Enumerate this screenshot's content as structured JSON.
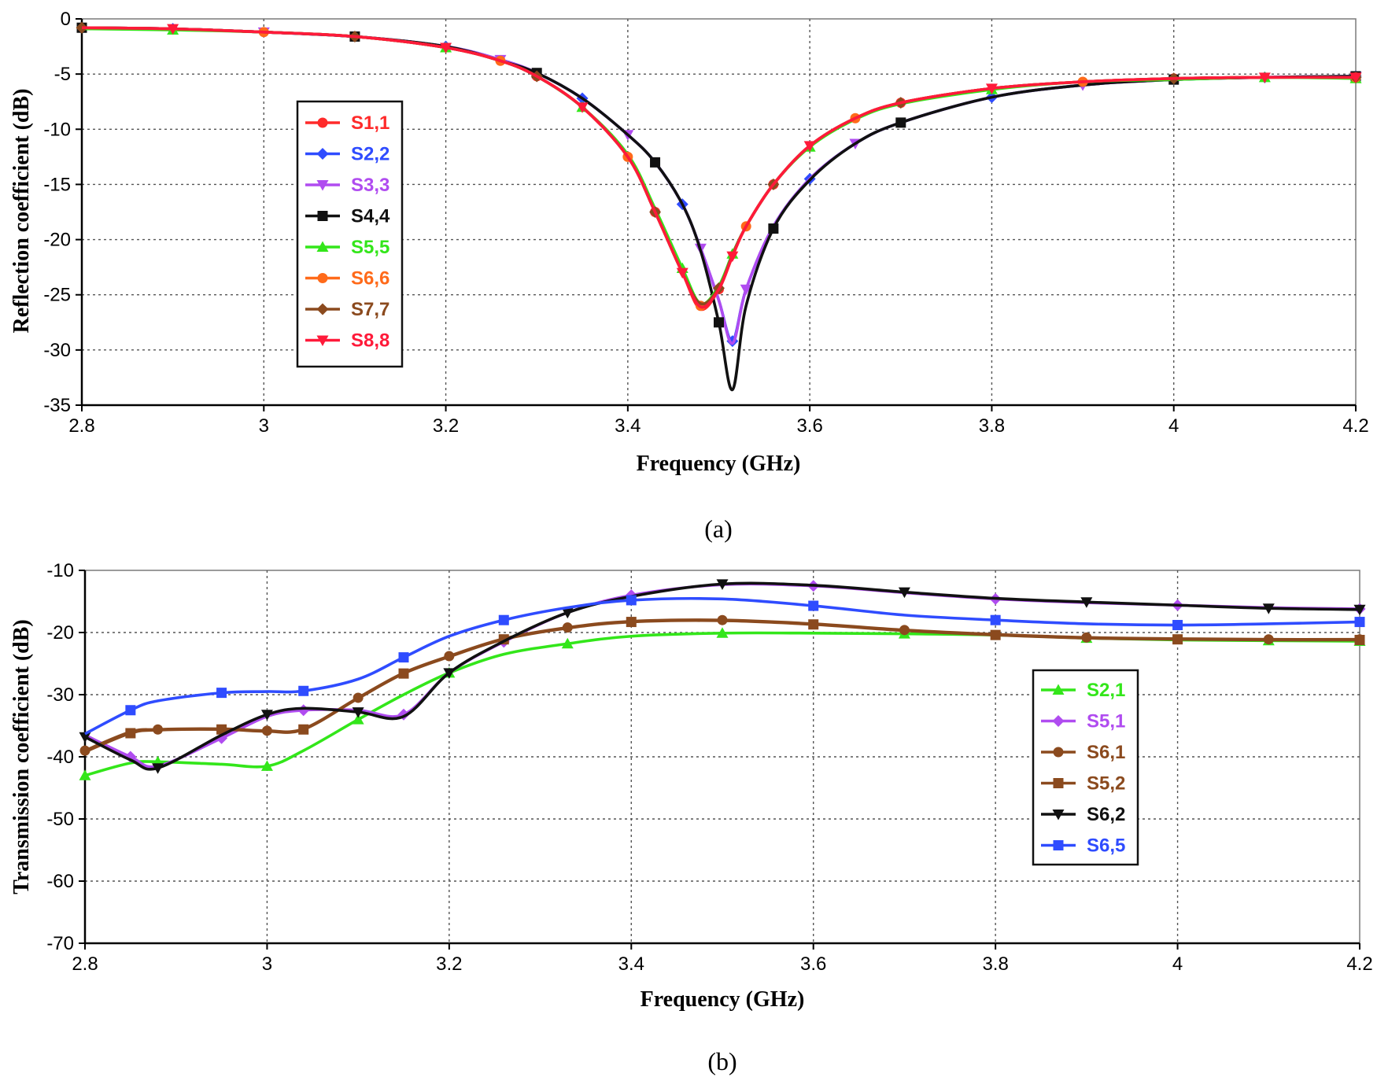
{
  "chart_data": [
    {
      "id": "a",
      "type": "line",
      "caption": "(a)",
      "xlabel": "Frequency (GHz)",
      "ylabel": "Reflection coefficient (dB)",
      "xlim": [
        2.8,
        4.2
      ],
      "ylim": [
        -35,
        0
      ],
      "xticks": [
        "2.8",
        "3",
        "3.2",
        "3.4",
        "3.6",
        "3.8",
        "4",
        "4.2"
      ],
      "yticks": [
        "0",
        "-5",
        "-10",
        "-15",
        "-20",
        "-25",
        "-30",
        "-35"
      ],
      "grid": true,
      "legend_position": "center-left",
      "x": [
        2.8,
        2.9,
        3.0,
        3.1,
        3.2,
        3.26,
        3.3,
        3.35,
        3.4,
        3.43,
        3.46,
        3.48,
        3.5,
        3.515,
        3.53,
        3.56,
        3.6,
        3.65,
        3.7,
        3.8,
        3.9,
        4.0,
        4.1,
        4.2
      ],
      "series": [
        {
          "name": "S1,1",
          "color": "#ff2a2a",
          "marker": "circle",
          "values": [
            -0.8,
            -0.9,
            -1.2,
            -1.6,
            -2.6,
            -3.8,
            -5.2,
            -8.0,
            -12.5,
            -17.5,
            -23.0,
            -26.3,
            -24.5,
            -21.5,
            -18.8,
            -15.0,
            -11.5,
            -9.0,
            -7.6,
            -6.3,
            -5.7,
            -5.4,
            -5.3,
            -5.3
          ]
        },
        {
          "name": "S2,2",
          "color": "#2f4cff",
          "marker": "diamond",
          "values": [
            -0.8,
            -0.9,
            -1.2,
            -1.6,
            -2.5,
            -3.7,
            -4.9,
            -7.2,
            -10.5,
            -13.0,
            -16.8,
            -20.8,
            -25.5,
            -29.2,
            -24.5,
            -18.8,
            -14.5,
            -11.3,
            -9.4,
            -7.1,
            -6.0,
            -5.5,
            -5.3,
            -5.2
          ]
        },
        {
          "name": "S3,3",
          "color": "#b04cf0",
          "marker": "triangle-down",
          "values": [
            -0.8,
            -0.9,
            -1.2,
            -1.6,
            -2.5,
            -3.7,
            -4.9,
            -7.2,
            -10.5,
            -13.0,
            -16.8,
            -20.8,
            -25.5,
            -29.4,
            -24.5,
            -18.8,
            -14.5,
            -11.3,
            -9.4,
            -7.1,
            -6.0,
            -5.5,
            -5.3,
            -5.2
          ]
        },
        {
          "name": "S4,4",
          "color": "#111111",
          "marker": "square",
          "values": [
            -0.8,
            -0.9,
            -1.2,
            -1.6,
            -2.5,
            -3.8,
            -4.9,
            -7.2,
            -10.5,
            -13.0,
            -16.8,
            -21.0,
            -27.5,
            -33.6,
            -26.0,
            -19.0,
            -14.6,
            -11.3,
            -9.4,
            -7.1,
            -6.0,
            -5.5,
            -5.3,
            -5.2
          ]
        },
        {
          "name": "S5,5",
          "color": "#33e61a",
          "marker": "triangle-up",
          "values": [
            -0.9,
            -1.0,
            -1.2,
            -1.6,
            -2.6,
            -3.8,
            -5.2,
            -8.0,
            -12.3,
            -17.2,
            -22.6,
            -25.8,
            -24.2,
            -21.3,
            -18.8,
            -15.0,
            -11.6,
            -9.1,
            -7.7,
            -6.4,
            -5.7,
            -5.5,
            -5.3,
            -5.4
          ]
        },
        {
          "name": "S6,6",
          "color": "#ff6a1a",
          "marker": "circle",
          "values": [
            -0.8,
            -0.9,
            -1.2,
            -1.6,
            -2.6,
            -3.8,
            -5.2,
            -8.0,
            -12.5,
            -17.5,
            -23.0,
            -26.0,
            -24.5,
            -21.5,
            -18.8,
            -15.0,
            -11.5,
            -9.0,
            -7.6,
            -6.3,
            -5.7,
            -5.4,
            -5.3,
            -5.3
          ]
        },
        {
          "name": "S7,7",
          "color": "#8b4a1e",
          "marker": "diamond",
          "values": [
            -0.8,
            -0.9,
            -1.2,
            -1.6,
            -2.6,
            -3.8,
            -5.2,
            -8.0,
            -12.5,
            -17.5,
            -23.0,
            -25.8,
            -24.4,
            -21.4,
            -18.8,
            -15.0,
            -11.5,
            -9.0,
            -7.6,
            -6.3,
            -5.7,
            -5.4,
            -5.3,
            -5.3
          ]
        },
        {
          "name": "S8,8",
          "color": "#ff1a3a",
          "marker": "triangle-down",
          "values": [
            -0.8,
            -0.9,
            -1.2,
            -1.6,
            -2.6,
            -3.8,
            -5.2,
            -8.0,
            -12.5,
            -17.5,
            -23.0,
            -26.1,
            -24.5,
            -21.5,
            -18.8,
            -15.0,
            -11.5,
            -9.0,
            -7.6,
            -6.3,
            -5.7,
            -5.4,
            -5.3,
            -5.3
          ]
        }
      ]
    },
    {
      "id": "b",
      "type": "line",
      "caption": "(b)",
      "xlabel": "Frequency (GHz)",
      "ylabel": "Transmission coefficient (dB)",
      "xlim": [
        2.8,
        4.2
      ],
      "ylim": [
        -70,
        -10
      ],
      "xticks": [
        "2.8",
        "3",
        "3.2",
        "3.4",
        "3.6",
        "3.8",
        "4",
        "4.2"
      ],
      "yticks": [
        "-10",
        "-20",
        "-30",
        "-40",
        "-50",
        "-60",
        "-70"
      ],
      "grid": true,
      "legend_position": "center-right",
      "x": [
        2.8,
        2.85,
        2.88,
        2.95,
        3.0,
        3.04,
        3.1,
        3.15,
        3.2,
        3.26,
        3.33,
        3.4,
        3.5,
        3.6,
        3.7,
        3.8,
        3.9,
        4.0,
        4.1,
        4.2
      ],
      "series": [
        {
          "name": "S2,1",
          "color": "#33e61a",
          "marker": "triangle-up",
          "values": [
            -43.0,
            -41.0,
            -40.8,
            -41.2,
            -41.5,
            -39.0,
            -34.0,
            -30.0,
            -26.5,
            -23.5,
            -21.8,
            -20.6,
            -20.1,
            -20.1,
            -20.2,
            -20.4,
            -20.9,
            -21.2,
            -21.3,
            -21.4
          ]
        },
        {
          "name": "S5,1",
          "color": "#b04cf0",
          "marker": "diamond",
          "values": [
            -36.5,
            -40.0,
            -41.5,
            -37.0,
            -33.5,
            -32.5,
            -32.5,
            -33.2,
            -26.5,
            -21.5,
            -16.8,
            -14.0,
            -12.3,
            -12.5,
            -13.6,
            -14.6,
            -15.2,
            -15.6,
            -16.0,
            -16.2
          ]
        },
        {
          "name": "S6,1",
          "color": "#8b4a1e",
          "marker": "circle",
          "values": [
            -39.0,
            -36.0,
            -35.6,
            -35.5,
            -35.8,
            -35.5,
            -30.5,
            -26.5,
            -23.8,
            -21.0,
            -19.2,
            -18.2,
            -18.0,
            -18.6,
            -19.6,
            -20.3,
            -20.8,
            -21.0,
            -21.1,
            -21.1
          ]
        },
        {
          "name": "S5,2",
          "color": "#8b4a1e",
          "marker": "square",
          "values": [
            -39.2,
            -36.2,
            -35.7,
            -35.6,
            -35.9,
            -35.6,
            -30.6,
            -26.6,
            -23.9,
            -21.1,
            -19.3,
            -18.3,
            -18.1,
            -18.7,
            -19.7,
            -20.4,
            -20.9,
            -21.1,
            -21.2,
            -21.2
          ]
        },
        {
          "name": "S6,2",
          "color": "#111111",
          "marker": "triangle-down",
          "values": [
            -36.8,
            -40.5,
            -41.8,
            -36.5,
            -33.2,
            -32.2,
            -32.8,
            -33.5,
            -26.5,
            -21.4,
            -16.8,
            -14.2,
            -12.2,
            -12.4,
            -13.5,
            -14.5,
            -15.1,
            -15.6,
            -16.1,
            -16.3
          ]
        },
        {
          "name": "S6,5",
          "color": "#2f4cff",
          "marker": "square",
          "values": [
            -36.3,
            -32.5,
            -31.0,
            -29.7,
            -29.5,
            -29.4,
            -27.5,
            -24.0,
            -20.6,
            -18.0,
            -16.0,
            -14.8,
            -14.6,
            -15.7,
            -17.2,
            -18.0,
            -18.6,
            -18.8,
            -18.6,
            -18.3
          ]
        }
      ]
    }
  ]
}
